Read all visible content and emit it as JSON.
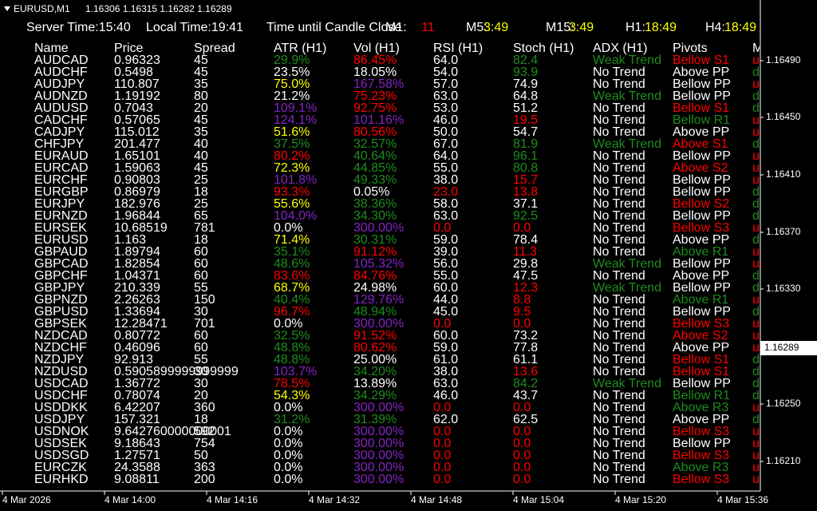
{
  "window": {
    "symbol": "EURUSD,M1",
    "quotes": "1.16306 1.16315 1.16282 1.16289"
  },
  "info_bar": {
    "server_time": "Server Time:15:40",
    "local_time": "Local Time:19:41",
    "countdown_title": "Time until Candle Close",
    "timers": [
      {
        "label": "M1:",
        "value": "11",
        "color": "r"
      },
      {
        "label": "M5:",
        "value": "3:49",
        "color": "y"
      },
      {
        "label": "M15:",
        "value": "3:49",
        "color": "y"
      },
      {
        "label": "H1:",
        "value": "18:49",
        "color": "y"
      },
      {
        "label": "H4:",
        "value": "18:49",
        "color": "y"
      }
    ]
  },
  "palette": {
    "w": "#ffffff",
    "g": "#1e8c1e",
    "y": "#ffff00",
    "p": "#8424c4",
    "r": "#ff0000"
  },
  "table": {
    "headers": [
      "Name",
      "Price",
      "Spread",
      "ATR (H1)",
      "Vol (H1)",
      "RSI (H1)",
      "Stoch (H1)",
      "ADX (H1)",
      "Pivots",
      "M"
    ],
    "rows": [
      [
        "AUDCAD",
        "0.96323",
        "45",
        "29.9%",
        "86.45%",
        "64.0",
        "82.4",
        "Weak Trend",
        "Bellow S1",
        "u"
      ],
      [
        "AUDCHF",
        "0.5498",
        "45",
        "23.5%",
        "18.05%",
        "54.0",
        "93.9",
        "No Trend",
        "Above PP",
        "d"
      ],
      [
        "AUDJPY",
        "110.807",
        "35",
        "75.0%",
        "167.58%",
        "57.0",
        "74.9",
        "No Trend",
        "Bellow PP",
        "u"
      ],
      [
        "AUDNZD",
        "1.19192",
        "80",
        "21.2%",
        "75.23%",
        "63.0",
        "64.8",
        "Weak Trend",
        "Bellow PP",
        "d"
      ],
      [
        "AUDUSD",
        "0.7043",
        "20",
        "109.1%",
        "92.75%",
        "53.0",
        "51.2",
        "No Trend",
        "Bellow S1",
        "d"
      ],
      [
        "CADCHF",
        "0.57065",
        "45",
        "124.1%",
        "101.16%",
        "46.0",
        "19.5",
        "No Trend",
        "Bellow R1",
        "u"
      ],
      [
        "CADJPY",
        "115.012",
        "35",
        "51.6%",
        "80.56%",
        "50.0",
        "54.7",
        "No Trend",
        "Above PP",
        "u"
      ],
      [
        "CHFJPY",
        "201.477",
        "40",
        "37.5%",
        "32.57%",
        "67.0",
        "81.9",
        "Weak Trend",
        "Above S1",
        "d"
      ],
      [
        "EURAUD",
        "1.65101",
        "40",
        "80.2%",
        "40.64%",
        "64.0",
        "96.1",
        "No Trend",
        "Bellow PP",
        "u"
      ],
      [
        "EURCAD",
        "1.59063",
        "45",
        "72.3%",
        "44.85%",
        "55.0",
        "80.8",
        "No Trend",
        "Above S2",
        "u"
      ],
      [
        "EURCHF",
        "0.90803",
        "25",
        "101.8%",
        "49.33%",
        "38.0",
        "15.7",
        "No Trend",
        "Bellow PP",
        "u"
      ],
      [
        "EURGBP",
        "0.86979",
        "18",
        "93.3%",
        "0.05%",
        "23.0",
        "13.8",
        "No Trend",
        "Bellow PP",
        "d"
      ],
      [
        "EURJPY",
        "182.976",
        "25",
        "55.6%",
        "38.36%",
        "58.0",
        "37.1",
        "No Trend",
        "Bellow S2",
        "d"
      ],
      [
        "EURNZD",
        "1.96844",
        "65",
        "104.0%",
        "34.30%",
        "63.0",
        "92.5",
        "No Trend",
        "Bellow PP",
        "d"
      ],
      [
        "EURSEK",
        "10.68519",
        "781",
        "0.0%",
        "300.00%",
        "0.0",
        "0.0",
        "No Trend",
        "Bellow S3",
        "u"
      ],
      [
        "EURUSD",
        "1.163",
        "18",
        "71.4%",
        "30.31%",
        "59.0",
        "78.4",
        "No Trend",
        "Above PP",
        "d"
      ],
      [
        "GBPAUD",
        "1.89794",
        "60",
        "35.1%",
        "91.12%",
        "39.0",
        "11.3",
        "No Trend",
        "Above R1",
        "u"
      ],
      [
        "GBPCAD",
        "1.82854",
        "60",
        "48.6%",
        "105.32%",
        "56.0",
        "29.8",
        "Weak Trend",
        "Bellow PP",
        "u"
      ],
      [
        "GBPCHF",
        "1.04371",
        "60",
        "83.6%",
        "84.76%",
        "55.0",
        "47.5",
        "No Trend",
        "Above PP",
        "d"
      ],
      [
        "GBPJPY",
        "210.339",
        "55",
        "68.7%",
        "24.98%",
        "60.0",
        "12.3",
        "Weak Trend",
        "Bellow PP",
        "d"
      ],
      [
        "GBPNZD",
        "2.26263",
        "150",
        "40.4%",
        "129.76%",
        "44.0",
        "8.8",
        "No Trend",
        "Above R1",
        "u"
      ],
      [
        "GBPUSD",
        "1.33694",
        "30",
        "96.7%",
        "48.94%",
        "45.0",
        "9.5",
        "No Trend",
        "Bellow PP",
        "d"
      ],
      [
        "GBPSEK",
        "12.28471",
        "701",
        "0.0%",
        "300.00%",
        "0.0",
        "0.0",
        "No Trend",
        "Bellow S3",
        "u"
      ],
      [
        "NZDCAD",
        "0.80772",
        "60",
        "32.5%",
        "91.52%",
        "60.0",
        "73.2",
        "No Trend",
        "Above S2",
        "u"
      ],
      [
        "NZDCHF",
        "0.46096",
        "60",
        "48.8%",
        "80.62%",
        "59.0",
        "77.8",
        "No Trend",
        "Above PP",
        "u"
      ],
      [
        "NZDJPY",
        "92.913",
        "55",
        "48.8%",
        "25.00%",
        "61.0",
        "61.1",
        "No Trend",
        "Bellow S1",
        "d"
      ],
      [
        "NZDUSD",
        "0.5905899999999999",
        "30",
        "103.7%",
        "34.20%",
        "38.0",
        "13.6",
        "No Trend",
        "Bellow S1",
        "d"
      ],
      [
        "USDCAD",
        "1.36772",
        "30",
        "78.5%",
        "13.89%",
        "63.0",
        "84.2",
        "Weak Trend",
        "Bellow PP",
        "d"
      ],
      [
        "USDCHF",
        "0.78074",
        "20",
        "54.3%",
        "34.29%",
        "46.0",
        "43.7",
        "No Trend",
        "Bellow R1",
        "d"
      ],
      [
        "USDDKK",
        "6.42207",
        "360",
        "0.0%",
        "300.00%",
        "0.0",
        "0.0",
        "No Trend",
        "Above R3",
        "u"
      ],
      [
        "USDJPY",
        "157.321",
        "18",
        "31.2%",
        "31.39%",
        "62.0",
        "62.5",
        "No Trend",
        "Above PP",
        "d"
      ],
      [
        "USDNOK",
        "9.642760000000001",
        "592",
        "0.0%",
        "300.00%",
        "0.0",
        "0.0",
        "No Trend",
        "Bellow S3",
        "u"
      ],
      [
        "USDSEK",
        "9.18643",
        "754",
        "0.0%",
        "300.00%",
        "0.0",
        "0.0",
        "No Trend",
        "Bellow PP",
        "u"
      ],
      [
        "USDSGD",
        "1.27571",
        "50",
        "0.0%",
        "300.00%",
        "0.0",
        "0.0",
        "No Trend",
        "Bellow S3",
        "u"
      ],
      [
        "EURCZK",
        "24.3588",
        "363",
        "0.0%",
        "300.00%",
        "0.0",
        "0.0",
        "No Trend",
        "Above R3",
        "u"
      ],
      [
        "EURHKD",
        "9.08811",
        "200",
        "0.0%",
        "300.00%",
        "0.0",
        "0.0",
        "No Trend",
        "Bellow S3",
        "u"
      ]
    ],
    "colors": [
      "wwwgrwggrr",
      "wwwwwwgwwg",
      "wwwypwwwwr",
      "wwwwrwwgwg",
      "wwwprwwwrg",
      "wwwppwrwgr",
      "wwwyrwwwwr",
      "wwwggwggrg",
      "wwwrgwgwwr",
      "wwwygwgwrr",
      "wwwpgwrwwr",
      "wwwrwrrwwg",
      "wwwygwwwrg",
      "wwwpgwgwwg",
      "wwwwprrwrr",
      "wwwygwwwwg",
      "wwwgrwrwgr",
      "wwwgpwwgwr",
      "wwwrrwwwwg",
      "wwwywwrgwg",
      "wwwgpwrwgr",
      "wwwrgwrwwg",
      "wwwwprrwrr",
      "wwwgrwwwrr",
      "wwwgrwwwwr",
      "wwwgwwwwrg",
      "wwwpgwrwrg",
      "wwwrwwggwg",
      "wwwygwwwgg",
      "wwwwprrwgr",
      "wwwggwwwwg",
      "wwwwprrwrr",
      "wwwwprrwwr",
      "wwwwprrwrr",
      "wwwwprrwgr",
      "wwwwprrwrr"
    ]
  },
  "price_axis": {
    "labels": [
      "1.16490",
      "1.16450",
      "1.16410",
      "1.16370",
      "1.16330",
      "1.16250",
      "1.16210"
    ],
    "current": "1.16289"
  },
  "time_axis": {
    "labels": [
      "4 Mar 2026",
      "4 Mar 14:00",
      "4 Mar 14:16",
      "4 Mar 14:32",
      "4 Mar 14:48",
      "4 Mar 15:04",
      "4 Mar 15:20",
      "4 Mar 15:36"
    ]
  }
}
